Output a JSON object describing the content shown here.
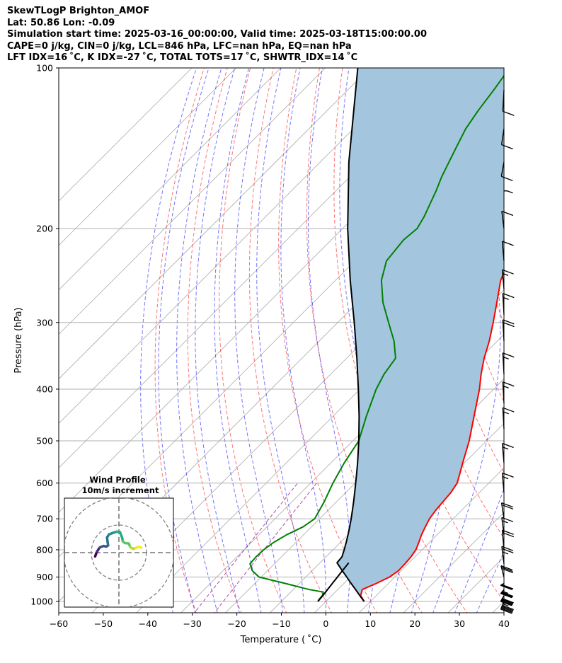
{
  "title_lines": [
    "SkewTLogP Brighton_AMOF",
    "Lat: 50.86   Lon: -0.09",
    "Simulation start time: 2025-03-16_00:00:00, Valid time: 2025-03-18T15:00:00.00",
    "CAPE=0 j/kg, CIN=0 j/kg, LCL=846 hPa, LFC=nan hPa, EQ=nan hPa",
    "LFT IDX=16 ˚C, K IDX=-27 ˚C, TOTAL TOTS=17 ˚C, SHWTR_IDX=14 ˚C"
  ],
  "chart_data": {
    "type": "line",
    "xlabel": "Temperature ( ˚C)",
    "ylabel": "Pressure (hPa)",
    "xlim": [
      -60,
      40
    ],
    "ylim": [
      1050,
      100
    ],
    "y_scale": "log",
    "x_ticks": [
      -60,
      -50,
      -40,
      -30,
      -20,
      -10,
      0,
      10,
      20,
      30,
      40
    ],
    "x_tick_labels": [
      "−60",
      "−50",
      "−40",
      "−30",
      "−20",
      "−10",
      "0",
      "10",
      "20",
      "30",
      "40"
    ],
    "y_ticks": [
      1000,
      900,
      800,
      700,
      600,
      500,
      400,
      300,
      200,
      100
    ],
    "y_tick_labels": [
      "1000",
      "900",
      "800",
      "700",
      "600",
      "500",
      "400",
      "300",
      "200",
      "100"
    ],
    "grid": true,
    "series": [
      {
        "color": "#ff0000",
        "points": [
          [
            1000,
            8.6
          ],
          [
            975,
            6.5
          ],
          [
            950,
            5.5
          ],
          [
            925,
            7.3
          ],
          [
            900,
            8.8
          ],
          [
            875,
            9.4
          ],
          [
            850,
            9.3
          ],
          [
            825,
            9.1
          ],
          [
            800,
            8.6
          ],
          [
            775,
            7.6
          ],
          [
            750,
            6.5
          ],
          [
            725,
            5.6
          ],
          [
            700,
            4.7
          ],
          [
            675,
            4.2
          ],
          [
            650,
            3.9
          ],
          [
            625,
            3.6
          ],
          [
            600,
            2.9
          ],
          [
            575,
            1.3
          ],
          [
            550,
            -0.4
          ],
          [
            500,
            -3.9
          ],
          [
            450,
            -8.3
          ],
          [
            400,
            -13.2
          ],
          [
            375,
            -16.2
          ],
          [
            350,
            -19.1
          ],
          [
            325,
            -21.8
          ],
          [
            300,
            -25.1
          ],
          [
            275,
            -28.8
          ],
          [
            250,
            -32.9
          ],
          [
            230,
            -35.4
          ],
          [
            210,
            -35.6
          ],
          [
            200,
            -35.3
          ],
          [
            190,
            -35.1
          ],
          [
            180,
            -35.1
          ],
          [
            170,
            -36.3
          ],
          [
            160,
            -38.8
          ],
          [
            150,
            -40.1
          ],
          [
            140,
            -41.9
          ],
          [
            130,
            -44.7
          ],
          [
            120,
            -48.0
          ],
          [
            110,
            -52.0
          ],
          [
            100,
            -56.0
          ]
        ]
      },
      {
        "color": "#008000",
        "points": [
          [
            1000,
            -1.8
          ],
          [
            990,
            -2.0
          ],
          [
            975,
            -2.1
          ],
          [
            960,
            -2.7
          ],
          [
            950,
            -6.4
          ],
          [
            925,
            -13.2
          ],
          [
            900,
            -20.5
          ],
          [
            875,
            -23.5
          ],
          [
            850,
            -25.5
          ],
          [
            825,
            -25.7
          ],
          [
            800,
            -25.6
          ],
          [
            775,
            -25.0
          ],
          [
            750,
            -23.8
          ],
          [
            725,
            -21.9
          ],
          [
            700,
            -21.1
          ],
          [
            650,
            -22.8
          ],
          [
            600,
            -25.0
          ],
          [
            550,
            -27.0
          ],
          [
            500,
            -28.7
          ],
          [
            450,
            -32.5
          ],
          [
            400,
            -36.4
          ],
          [
            375,
            -38.0
          ],
          [
            350,
            -39.0
          ],
          [
            325,
            -43.2
          ],
          [
            300,
            -48.6
          ],
          [
            275,
            -54.4
          ],
          [
            250,
            -59.7
          ],
          [
            230,
            -62.9
          ],
          [
            210,
            -63.8
          ],
          [
            200,
            -63.3
          ],
          [
            190,
            -64.4
          ],
          [
            180,
            -65.9
          ],
          [
            170,
            -67.5
          ],
          [
            160,
            -69.4
          ],
          [
            150,
            -71.1
          ],
          [
            140,
            -72.9
          ],
          [
            130,
            -74.8
          ],
          [
            120,
            -76.1
          ],
          [
            110,
            -77.2
          ],
          [
            100,
            -78.6
          ]
        ]
      },
      {
        "color": "#000000",
        "points": [
          [
            1000,
            8.6
          ],
          [
            975,
            6.3
          ],
          [
            950,
            4.0
          ],
          [
            925,
            1.6
          ],
          [
            900,
            -0.8
          ],
          [
            875,
            -3.3
          ],
          [
            850,
            -5.8
          ],
          [
            846,
            -6.2
          ],
          [
            825,
            -6.4
          ],
          [
            800,
            -7.5
          ],
          [
            775,
            -8.7
          ],
          [
            750,
            -10.0
          ],
          [
            725,
            -11.4
          ],
          [
            700,
            -12.9
          ],
          [
            675,
            -14.5
          ],
          [
            650,
            -16.2
          ],
          [
            625,
            -18.0
          ],
          [
            600,
            -19.9
          ],
          [
            575,
            -21.9
          ],
          [
            550,
            -24.0
          ],
          [
            500,
            -28.7
          ],
          [
            450,
            -34.1
          ],
          [
            400,
            -40.4
          ],
          [
            350,
            -47.7
          ],
          [
            300,
            -56.3
          ],
          [
            250,
            -66.7
          ],
          [
            200,
            -78.9
          ],
          [
            150,
            -93.6
          ],
          [
            100,
            -112.7
          ]
        ]
      },
      {
        "color": "#000000",
        "points": [
          [
            1000,
            -1.8
          ],
          [
            975,
            -2.0
          ],
          [
            950,
            -2.3
          ],
          [
            925,
            -2.6
          ],
          [
            900,
            -2.9
          ],
          [
            875,
            -3.2
          ],
          [
            850,
            -3.5
          ],
          [
            846,
            -3.6
          ]
        ]
      }
    ],
    "fill_between": {
      "between": [
        "#ff0000",
        "#000000"
      ],
      "color": "#a3c6de"
    },
    "background_lines": [
      {
        "kind": "isotherm",
        "color": "#aaaaaa",
        "style": "solid",
        "values": [
          -150,
          -140,
          -130,
          -120,
          -110,
          -100,
          -90,
          -80,
          -70,
          -60,
          -50,
          -40,
          -30,
          -20,
          -10,
          0,
          10,
          20,
          30,
          40
        ]
      },
      {
        "kind": "dry adiabat",
        "color": "#ff0000",
        "style": "dashed",
        "values": [
          -30,
          -20,
          -10,
          0,
          10,
          20,
          30,
          40,
          50,
          60,
          70,
          80,
          90,
          100,
          110,
          120,
          130,
          140,
          150,
          160,
          170,
          180,
          190,
          200
        ]
      },
      {
        "kind": "moist adiabat",
        "color": "#0000ff",
        "style": "dashed",
        "values": [
          -35,
          -30,
          -25,
          -20,
          -15,
          -10,
          -5,
          0,
          5,
          10,
          15,
          20,
          25,
          30,
          35
        ]
      },
      {
        "kind": "mixing ratio",
        "color": "#800080",
        "style": "dashed",
        "values": [
          0.4,
          0.6
        ]
      }
    ],
    "wind_barbs": [
      {
        "pressure": 1000,
        "speed_kt": 55,
        "direction": 250
      },
      {
        "pressure": 975,
        "speed_kt": 50,
        "direction": 255
      },
      {
        "pressure": 950,
        "speed_kt": 45,
        "direction": 260
      },
      {
        "pressure": 925,
        "speed_kt": 40,
        "direction": 265
      },
      {
        "pressure": 900,
        "speed_kt": 30,
        "direction": 300
      },
      {
        "pressure": 850,
        "speed_kt": 25,
        "direction": 320
      },
      {
        "pressure": 800,
        "speed_kt": 20,
        "direction": 330
      },
      {
        "pressure": 750,
        "speed_kt": 15,
        "direction": 320
      },
      {
        "pressure": 700,
        "speed_kt": 20,
        "direction": 315
      },
      {
        "pressure": 625,
        "speed_kt": 15,
        "direction": 330
      },
      {
        "pressure": 550,
        "speed_kt": 15,
        "direction": 330
      },
      {
        "pressure": 475,
        "speed_kt": 15,
        "direction": 340
      },
      {
        "pressure": 425,
        "speed_kt": 15,
        "direction": 340
      },
      {
        "pressure": 375,
        "speed_kt": 15,
        "direction": 340
      },
      {
        "pressure": 325,
        "speed_kt": 20,
        "direction": 340
      },
      {
        "pressure": 290,
        "speed_kt": 15,
        "direction": 340
      },
      {
        "pressure": 260,
        "speed_kt": 15,
        "direction": 330
      },
      {
        "pressure": 230,
        "speed_kt": 10,
        "direction": 330
      },
      {
        "pressure": 200,
        "speed_kt": 10,
        "direction": 320
      },
      {
        "pressure": 170,
        "speed_kt": 5,
        "direction": 90
      },
      {
        "pressure": 150,
        "speed_kt": 10,
        "direction": 230
      },
      {
        "pressure": 130,
        "speed_kt": 10,
        "direction": 225
      },
      {
        "pressure": 110,
        "speed_kt": 10,
        "direction": 200
      }
    ],
    "inset": {
      "title": "Wind Profile",
      "subtitle": "10m/s increment",
      "type": "hodograph",
      "ring_increment_ms": 10,
      "rings": 3,
      "points_uv": [
        [
          -8.6,
          -1.4
        ],
        [
          -8.3,
          -0.5
        ],
        [
          -7.9,
          0.4
        ],
        [
          -7.4,
          1.2
        ],
        [
          -6.9,
          1.9
        ],
        [
          -5.6,
          2.4
        ],
        [
          -4.6,
          2.2
        ],
        [
          -3.9,
          2.6
        ],
        [
          -4.1,
          3.9
        ],
        [
          -4.3,
          5.5
        ],
        [
          -3.6,
          6.6
        ],
        [
          -2.3,
          7.1
        ],
        [
          -0.8,
          7.6
        ],
        [
          0.4,
          7.4
        ],
        [
          1.2,
          5.3
        ],
        [
          1.4,
          4.1
        ],
        [
          2.1,
          3.5
        ],
        [
          3.6,
          3.3
        ],
        [
          4.1,
          2.0
        ],
        [
          5.1,
          1.4
        ],
        [
          6.2,
          1.7
        ],
        [
          7.1,
          2.1
        ],
        [
          8.1,
          1.8
        ]
      ]
    }
  }
}
